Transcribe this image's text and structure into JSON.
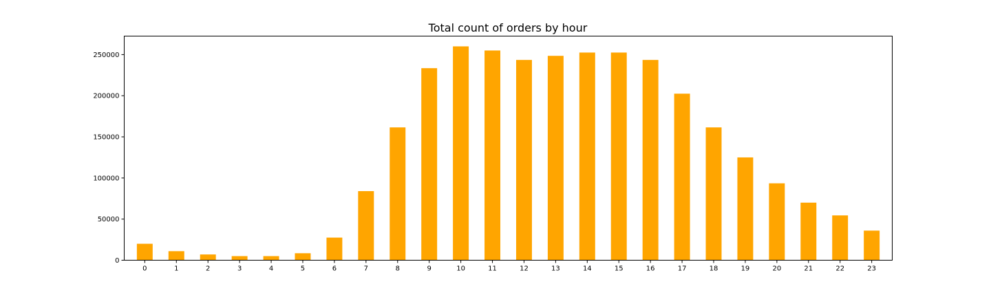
{
  "chart_data": {
    "type": "bar",
    "title": "Total count of orders by hour",
    "xlabel": "",
    "ylabel": "",
    "categories": [
      "0",
      "1",
      "2",
      "3",
      "4",
      "5",
      "6",
      "7",
      "8",
      "9",
      "10",
      "11",
      "12",
      "13",
      "14",
      "15",
      "16",
      "17",
      "18",
      "19",
      "20",
      "21",
      "22",
      "23"
    ],
    "values": [
      20000,
      11000,
      7000,
      5000,
      5000,
      8500,
      27500,
      84000,
      161500,
      233500,
      260000,
      255000,
      243500,
      248500,
      252500,
      252500,
      243500,
      202500,
      161500,
      125000,
      93500,
      70000,
      54500,
      36000
    ],
    "yticks": [
      0,
      50000,
      100000,
      150000,
      200000,
      250000
    ],
    "ylim": [
      0,
      272500
    ],
    "bar_color": "#ffa500",
    "grid": false,
    "legend": "none"
  }
}
